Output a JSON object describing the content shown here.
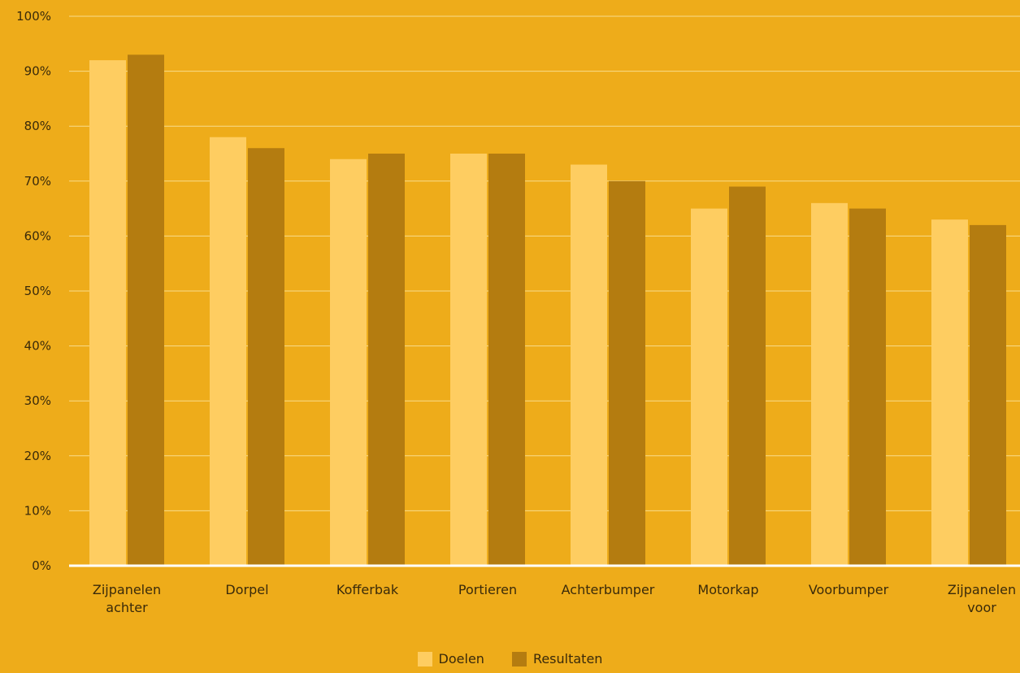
{
  "chart_data": {
    "type": "bar",
    "title": "",
    "xlabel": "",
    "ylabel": "",
    "ylim": [
      0,
      100
    ],
    "y_unit": "%",
    "y_ticks": [
      "0%",
      "10%",
      "20%",
      "30%",
      "40%",
      "50%",
      "60%",
      "70%",
      "80%",
      "90%",
      "100%"
    ],
    "grid": "horizontal",
    "legend_position": "bottom-center",
    "categories": [
      [
        "Zijpanelen",
        "achter"
      ],
      [
        "Dorpel"
      ],
      [
        "Kofferbak"
      ],
      [
        "Portieren"
      ],
      [
        "Achterbumper"
      ],
      [
        "Motorkap"
      ],
      [
        "Voorbumper"
      ],
      [
        "Zijpanelen",
        "voor"
      ]
    ],
    "series": [
      {
        "name": "Doelen",
        "color": "#fecd61",
        "values": [
          92,
          78,
          74,
          75,
          73,
          65,
          66,
          63
        ]
      },
      {
        "name": "Resultaten",
        "color": "#b47c10",
        "values": [
          93,
          76,
          75,
          75,
          70,
          69,
          65,
          62
        ]
      }
    ],
    "colors": {
      "background": "#eeac1a",
      "gridline": "#f8dc8c",
      "baseline": "#ffffff",
      "text": "#3a2a0a"
    }
  }
}
